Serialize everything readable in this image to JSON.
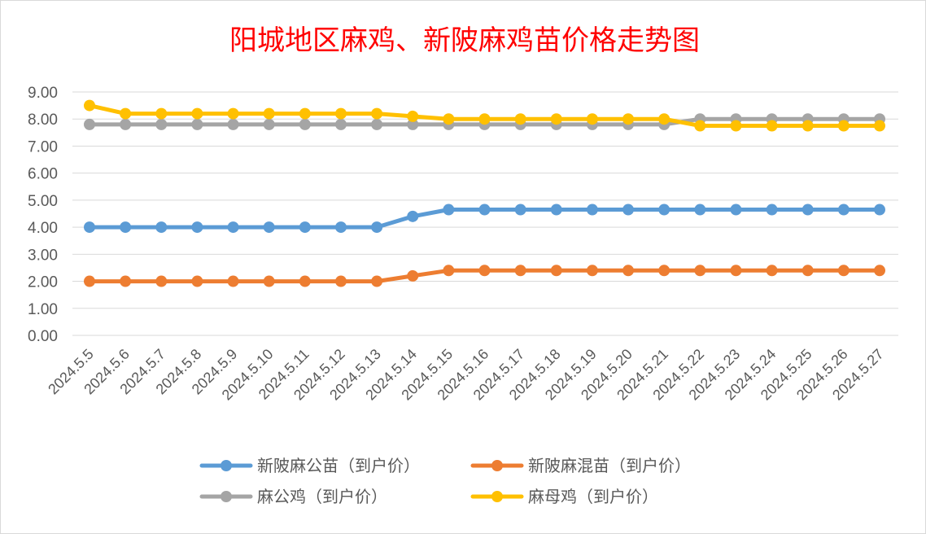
{
  "chart_data": {
    "type": "line",
    "title": "阳城地区麻鸡、新陂麻鸡苗价格走势图",
    "xlabel": "",
    "ylabel": "",
    "ylim": [
      0,
      9
    ],
    "yticks": [
      "0.00",
      "1.00",
      "2.00",
      "3.00",
      "4.00",
      "5.00",
      "6.00",
      "7.00",
      "8.00",
      "9.00"
    ],
    "grid": true,
    "legend_position": "bottom",
    "categories": [
      "2024.5.5",
      "2024.5.6",
      "2024.5.7",
      "2024.5.8",
      "2024.5.9",
      "2024.5.10",
      "2024.5.11",
      "2024.5.12",
      "2024.5.13",
      "2024.5.14",
      "2024.5.15",
      "2024.5.16",
      "2024.5.17",
      "2024.5.18",
      "2024.5.19",
      "2024.5.20",
      "2024.5.21",
      "2024.5.22",
      "2024.5.23",
      "2024.5.24",
      "2024.5.25",
      "2024.5.26",
      "2024.5.27"
    ],
    "series": [
      {
        "name": "新陂麻公苗（到户价）",
        "color": "#5b9bd5",
        "values": [
          4.0,
          4.0,
          4.0,
          4.0,
          4.0,
          4.0,
          4.0,
          4.0,
          4.0,
          4.4,
          4.65,
          4.65,
          4.65,
          4.65,
          4.65,
          4.65,
          4.65,
          4.65,
          4.65,
          4.65,
          4.65,
          4.65,
          4.65
        ]
      },
      {
        "name": "新陂麻混苗（到户价）",
        "color": "#ed7d31",
        "values": [
          2.0,
          2.0,
          2.0,
          2.0,
          2.0,
          2.0,
          2.0,
          2.0,
          2.0,
          2.2,
          2.4,
          2.4,
          2.4,
          2.4,
          2.4,
          2.4,
          2.4,
          2.4,
          2.4,
          2.4,
          2.4,
          2.4,
          2.4
        ]
      },
      {
        "name": "麻公鸡（到户价）",
        "color": "#a5a5a5",
        "values": [
          7.8,
          7.8,
          7.8,
          7.8,
          7.8,
          7.8,
          7.8,
          7.8,
          7.8,
          7.8,
          7.8,
          7.8,
          7.8,
          7.8,
          7.8,
          7.8,
          7.8,
          8.0,
          8.0,
          8.0,
          8.0,
          8.0,
          8.0
        ]
      },
      {
        "name": "麻母鸡（到户价）",
        "color": "#ffc000",
        "values": [
          8.5,
          8.2,
          8.2,
          8.2,
          8.2,
          8.2,
          8.2,
          8.2,
          8.2,
          8.1,
          8.0,
          8.0,
          8.0,
          8.0,
          8.0,
          8.0,
          8.0,
          7.75,
          7.75,
          7.75,
          7.75,
          7.75,
          7.75
        ]
      }
    ]
  }
}
